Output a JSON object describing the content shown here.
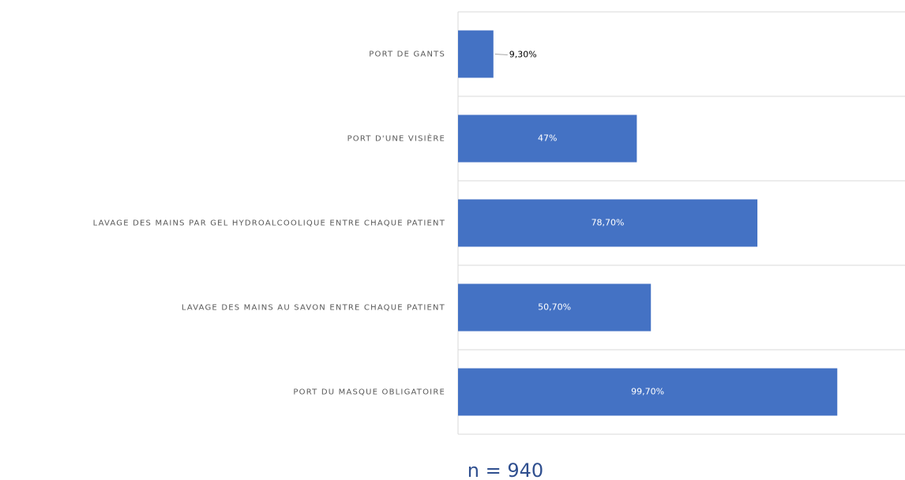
{
  "chart_data": {
    "type": "bar",
    "orientation": "horizontal",
    "categories": [
      "PORT DE GANTS",
      "PORT D'UNE VISIÈRE",
      "LAVAGE DES MAINS PAR GEL HYDROALCOOLIQUE ENTRE CHAQUE PATIENT",
      "LAVAGE DES MAINS AU SAVON ENTRE CHAQUE PATIENT",
      "PORT DU MASQUE OBLIGATOIRE"
    ],
    "values": [
      9.3,
      47,
      78.7,
      50.7,
      99.7
    ],
    "value_labels": [
      "9,30%",
      "47%",
      "78,70%",
      "50,70%",
      "99,70%"
    ],
    "color": "#4472c4",
    "xlim": [
      0,
      117.5
    ],
    "annotation": "n = 940"
  }
}
